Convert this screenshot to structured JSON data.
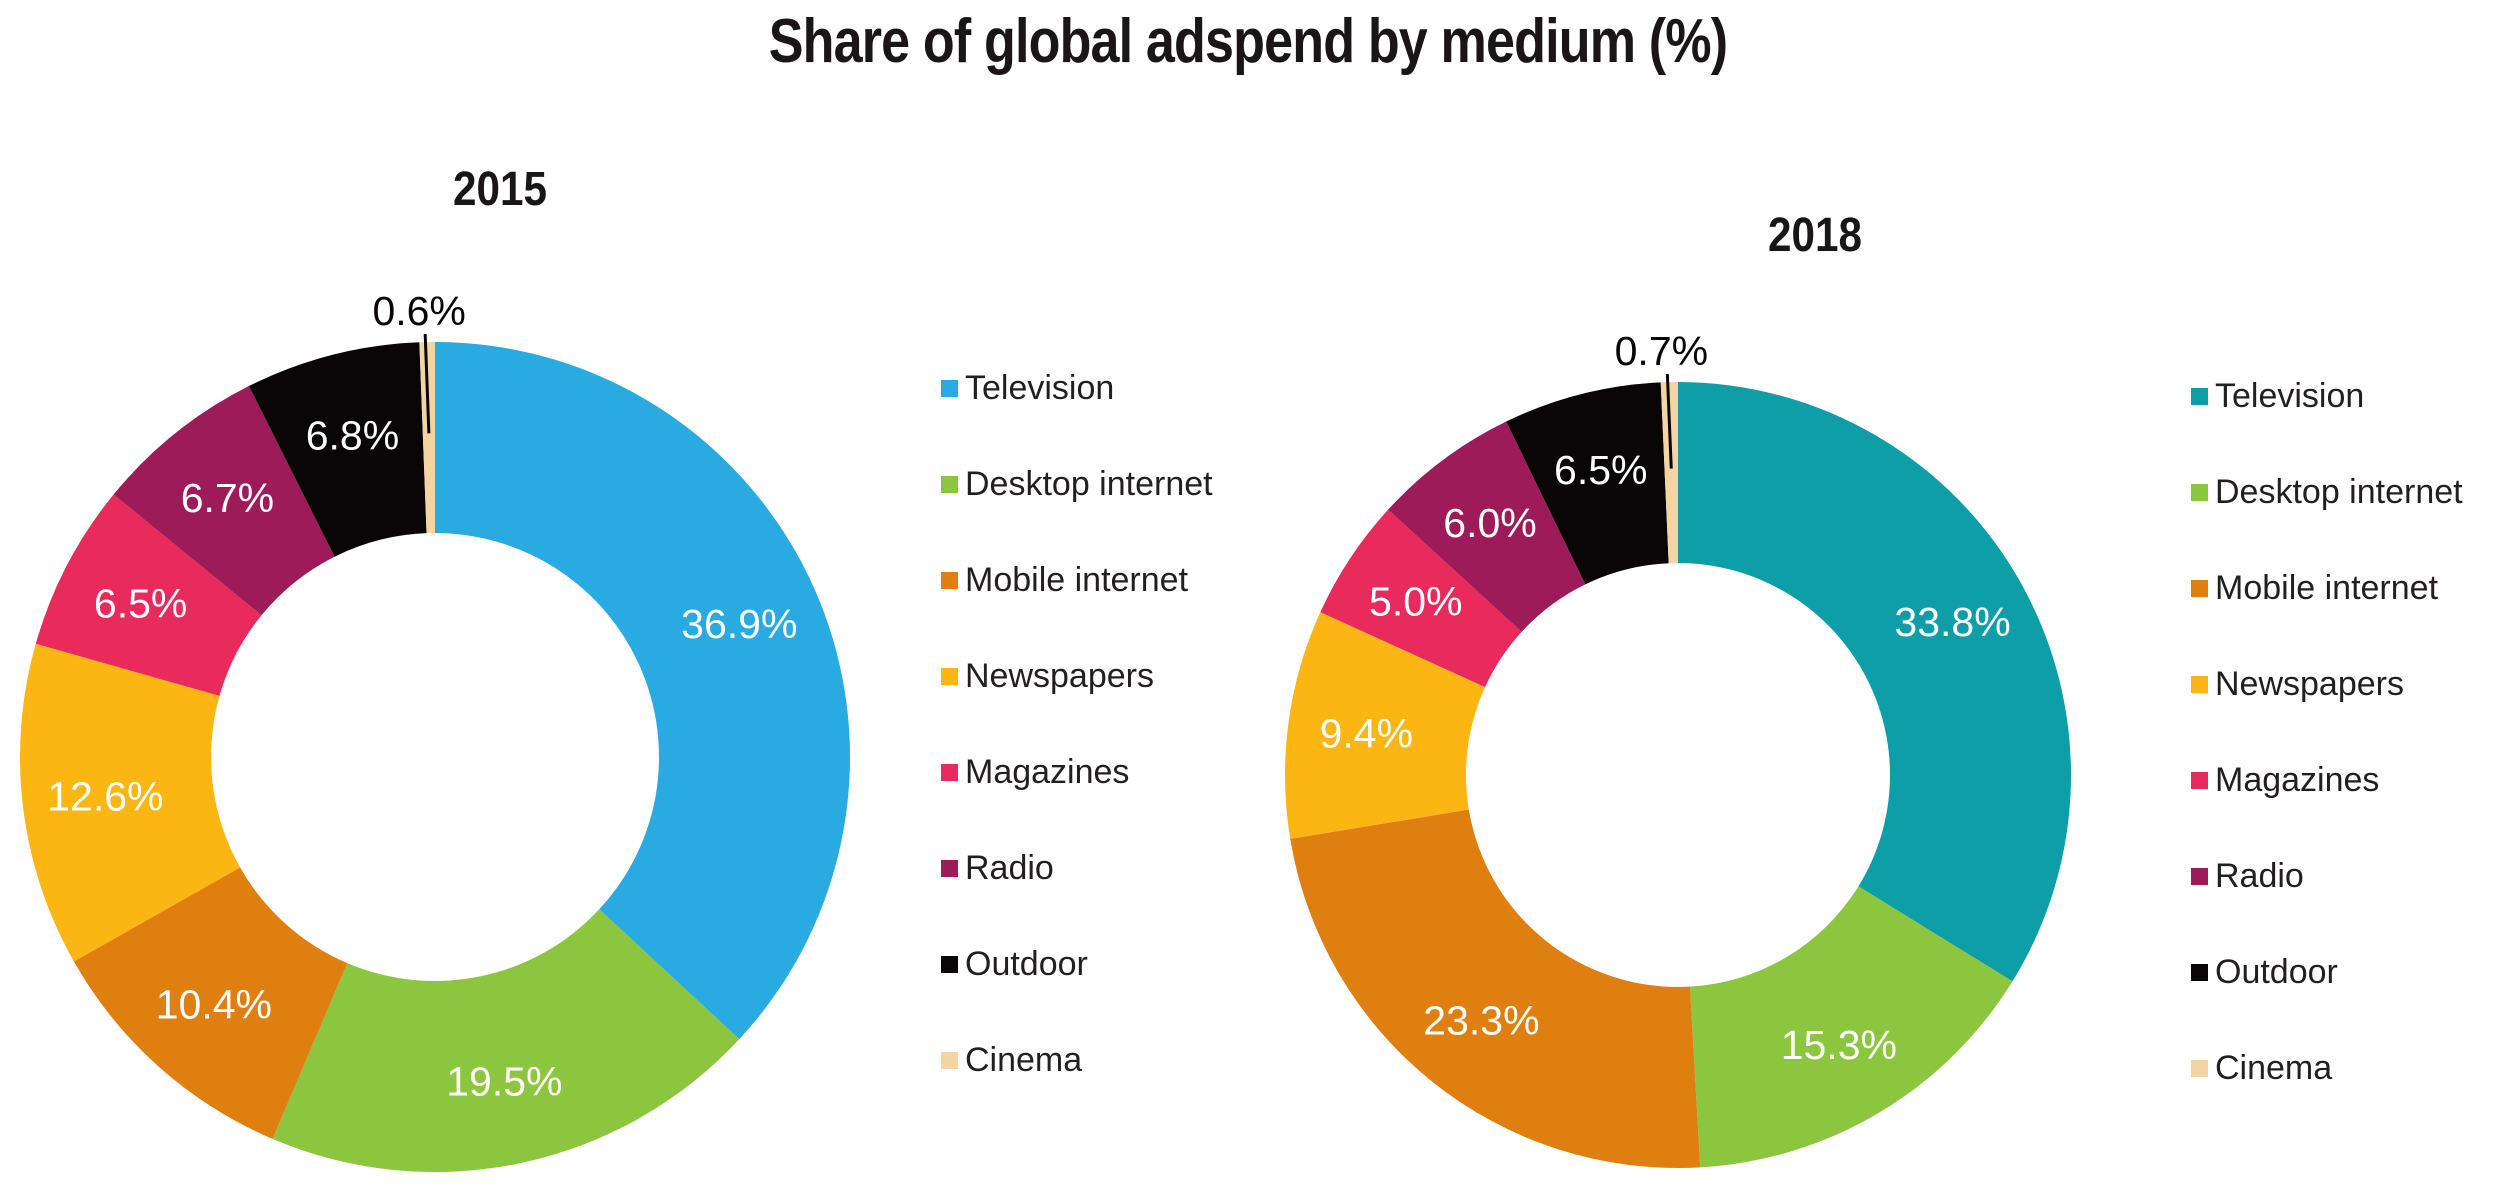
{
  "title": "Share of global adspend by medium (%)",
  "background_color": "#FFFFFF",
  "chart_data": [
    {
      "type": "pie",
      "subtype": "donut",
      "title": "2015",
      "legend_position": "right",
      "categories": [
        "Television",
        "Desktop internet",
        "Mobile internet",
        "Newspapers",
        "Magazines",
        "Radio",
        "Outdoor",
        "Cinema"
      ],
      "values": [
        36.9,
        19.5,
        10.4,
        12.6,
        6.5,
        6.7,
        6.8,
        0.6
      ],
      "value_labels": [
        "36.9%",
        "19.5%",
        "10.4%",
        "12.6%",
        "6.5%",
        "6.7%",
        "6.8%",
        "0.6%"
      ],
      "colors": [
        "#29ABE2",
        "#8CC63F",
        "#DF7F10",
        "#FCB614",
        "#E92A5D",
        "#9D1B58",
        "#0A0506",
        "#F4D5A2"
      ]
    },
    {
      "type": "pie",
      "subtype": "donut",
      "title": "2018",
      "legend_position": "right",
      "categories": [
        "Television",
        "Desktop internet",
        "Mobile internet",
        "Newspapers",
        "Magazines",
        "Radio",
        "Outdoor",
        "Cinema"
      ],
      "values": [
        33.8,
        15.3,
        23.3,
        9.4,
        5.0,
        6.0,
        6.5,
        0.7
      ],
      "value_labels": [
        "33.8%",
        "15.3%",
        "23.3%",
        "9.4%",
        "5.0%",
        "6.0%",
        "6.5%",
        "0.7%"
      ],
      "colors": [
        "#0D9EA8",
        "#8CC63F",
        "#DF7F10",
        "#FCB614",
        "#E92A5D",
        "#9D1B58",
        "#0A0506",
        "#F4D5A2"
      ]
    }
  ]
}
